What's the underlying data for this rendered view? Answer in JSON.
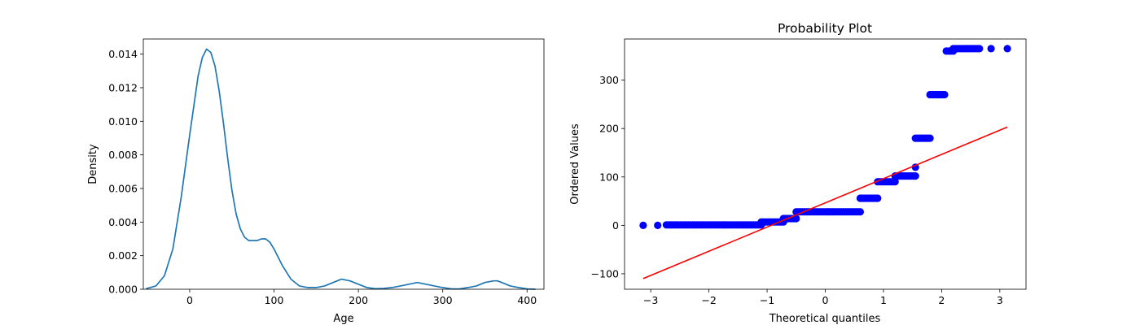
{
  "chart_data": [
    {
      "type": "line",
      "title": "",
      "xlabel": "Age",
      "ylabel": "Density",
      "xlim": [
        -55,
        420
      ],
      "ylim": [
        0,
        0.0149
      ],
      "xticks": [
        0,
        100,
        200,
        300,
        400
      ],
      "xtick_labels": [
        "0",
        "100",
        "200",
        "300",
        "400"
      ],
      "yticks": [
        0,
        0.002,
        0.004,
        0.006,
        0.008,
        0.01,
        0.012,
        0.014
      ],
      "ytick_labels": [
        "0.000",
        "0.002",
        "0.004",
        "0.006",
        "0.008",
        "0.010",
        "0.012",
        "0.014"
      ],
      "grid": false,
      "series": [
        {
          "color": "#1f77b4",
          "x": [
            -52,
            -40,
            -30,
            -20,
            -10,
            0,
            10,
            15,
            20,
            25,
            30,
            35,
            40,
            45,
            50,
            55,
            60,
            65,
            70,
            75,
            80,
            85,
            90,
            95,
            100,
            110,
            120,
            130,
            140,
            150,
            160,
            170,
            180,
            190,
            200,
            210,
            220,
            230,
            240,
            250,
            260,
            270,
            280,
            290,
            300,
            310,
            320,
            330,
            340,
            350,
            360,
            365,
            370,
            380,
            390,
            400,
            410
          ],
          "y": [
            3e-05,
            0.0002,
            0.0008,
            0.0024,
            0.0055,
            0.0092,
            0.0127,
            0.0138,
            0.0143,
            0.0141,
            0.0133,
            0.0118,
            0.0099,
            0.0078,
            0.0059,
            0.0045,
            0.0036,
            0.0031,
            0.0029,
            0.0029,
            0.0029,
            0.003,
            0.003,
            0.0028,
            0.0024,
            0.0014,
            0.0006,
            0.0002,
            0.0001,
            0.0001,
            0.0002,
            0.0004,
            0.0006,
            0.0005,
            0.0003,
            0.0001,
            3e-05,
            5e-05,
            0.0001,
            0.0002,
            0.0003,
            0.0004,
            0.0003,
            0.0002,
            0.0001,
            2e-05,
            2e-05,
            0.0001,
            0.0002,
            0.0004,
            0.0005,
            0.0005,
            0.0004,
            0.0002,
            0.0001,
            2e-05,
            0.0
          ]
        }
      ]
    },
    {
      "type": "scatter",
      "title": "Probability Plot",
      "xlabel": "Theoretical quantiles",
      "ylabel": "Ordered Values",
      "xlim": [
        -3.45,
        3.45
      ],
      "ylim": [
        -132,
        385
      ],
      "xticks": [
        -3,
        -2,
        -1,
        0,
        1,
        2,
        3
      ],
      "xtick_labels": [
        "−3",
        "−2",
        "−1",
        "0",
        "1",
        "2",
        "3"
      ],
      "yticks": [
        -100,
        0,
        100,
        200,
        300
      ],
      "ytick_labels": [
        "−100",
        "0",
        "100",
        "200",
        "300"
      ],
      "grid": false,
      "marker_color": "#0000ff",
      "fit_color": "#ff0000",
      "segments": [
        {
          "x_from": -3.13,
          "x_to": -3.13,
          "y": 0
        },
        {
          "x_from": -2.88,
          "x_to": -2.88,
          "y": 0
        },
        {
          "x_from": -2.73,
          "x_to": -1.1,
          "y": 1
        },
        {
          "x_from": -1.1,
          "x_to": -0.72,
          "y": 7
        },
        {
          "x_from": -0.72,
          "x_to": -0.5,
          "y": 14
        },
        {
          "x_from": -0.5,
          "x_to": 0.6,
          "y": 28
        },
        {
          "x_from": 0.6,
          "x_to": 0.9,
          "y": 56
        },
        {
          "x_from": 0.9,
          "x_to": 1.2,
          "y": 90
        },
        {
          "x_from": 1.2,
          "x_to": 1.55,
          "y": 102
        },
        {
          "x_from": 1.55,
          "x_to": 1.55,
          "y": 120
        },
        {
          "x_from": 1.55,
          "x_to": 1.8,
          "y": 180
        },
        {
          "x_from": 1.8,
          "x_to": 2.05,
          "y": 270
        },
        {
          "x_from": 2.08,
          "x_to": 2.2,
          "y": 360
        },
        {
          "x_from": 2.2,
          "x_to": 2.65,
          "y": 365
        },
        {
          "x_from": 2.85,
          "x_to": 2.85,
          "y": 365
        },
        {
          "x_from": 3.13,
          "x_to": 3.13,
          "y": 365
        }
      ],
      "fit_line": {
        "x": [
          -3.13,
          3.13
        ],
        "y": [
          -110,
          203
        ]
      }
    }
  ]
}
